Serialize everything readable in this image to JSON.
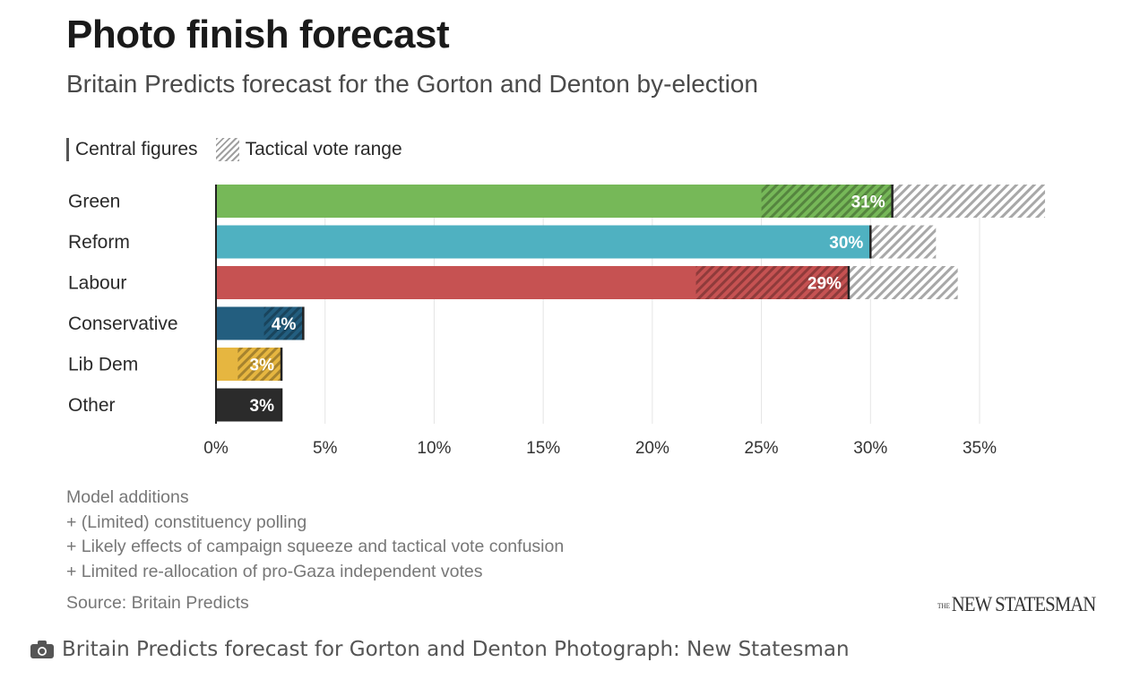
{
  "chart_data": {
    "type": "bar",
    "orientation": "horizontal",
    "title": "Photo finish forecast",
    "subtitle": "Britain Predicts forecast for the Gorton and Denton by-election",
    "xlabel": "",
    "ylabel": "",
    "xlim": [
      0,
      35
    ],
    "x_ticks": [
      0,
      5,
      10,
      15,
      20,
      25,
      30,
      35
    ],
    "x_tick_labels": [
      "0%",
      "5%",
      "10%",
      "15%",
      "20%",
      "25%",
      "30%",
      "35%"
    ],
    "grid": "vertical",
    "legend": {
      "placement": "top-left",
      "entries": [
        {
          "label": "Central figures",
          "style": "marker-line"
        },
        {
          "label": "Tactical vote range",
          "style": "hatched"
        }
      ]
    },
    "categories": [
      "Green",
      "Reform",
      "Labour",
      "Conservative",
      "Lib Dem",
      "Other"
    ],
    "series": [
      {
        "name": "Central figure",
        "values": [
          31,
          30,
          29,
          4,
          3,
          3
        ]
      },
      {
        "name": "Tactical range low",
        "values": [
          25,
          30,
          22,
          2.2,
          1,
          3
        ]
      },
      {
        "name": "Tactical range high",
        "values": [
          38,
          33,
          34,
          4,
          3,
          3
        ]
      }
    ],
    "data_labels": [
      "31%",
      "30%",
      "29%",
      "4%",
      "3%",
      "3%"
    ],
    "colors": [
      "#76b858",
      "#4fb1c1",
      "#c65252",
      "#235e7f",
      "#e6b640",
      "#2b2b2b"
    ]
  },
  "legend": {
    "central": "Central figures",
    "tactical": "Tactical vote range"
  },
  "notes": {
    "heading": "Model additions",
    "items": [
      "+ (Limited) constituency polling",
      "+ Likely effects of campaign squeeze and tactical vote confusion",
      "+ Limited re-allocation of pro-Gaza independent votes"
    ]
  },
  "source": "Source: Britain Predicts",
  "brand": {
    "prefix": "THE",
    "name": "NEW STATESMAN"
  },
  "caption": {
    "icon": "camera-icon",
    "text": "Britain Predicts forecast for Gorton and Denton Photograph: New Statesman"
  }
}
